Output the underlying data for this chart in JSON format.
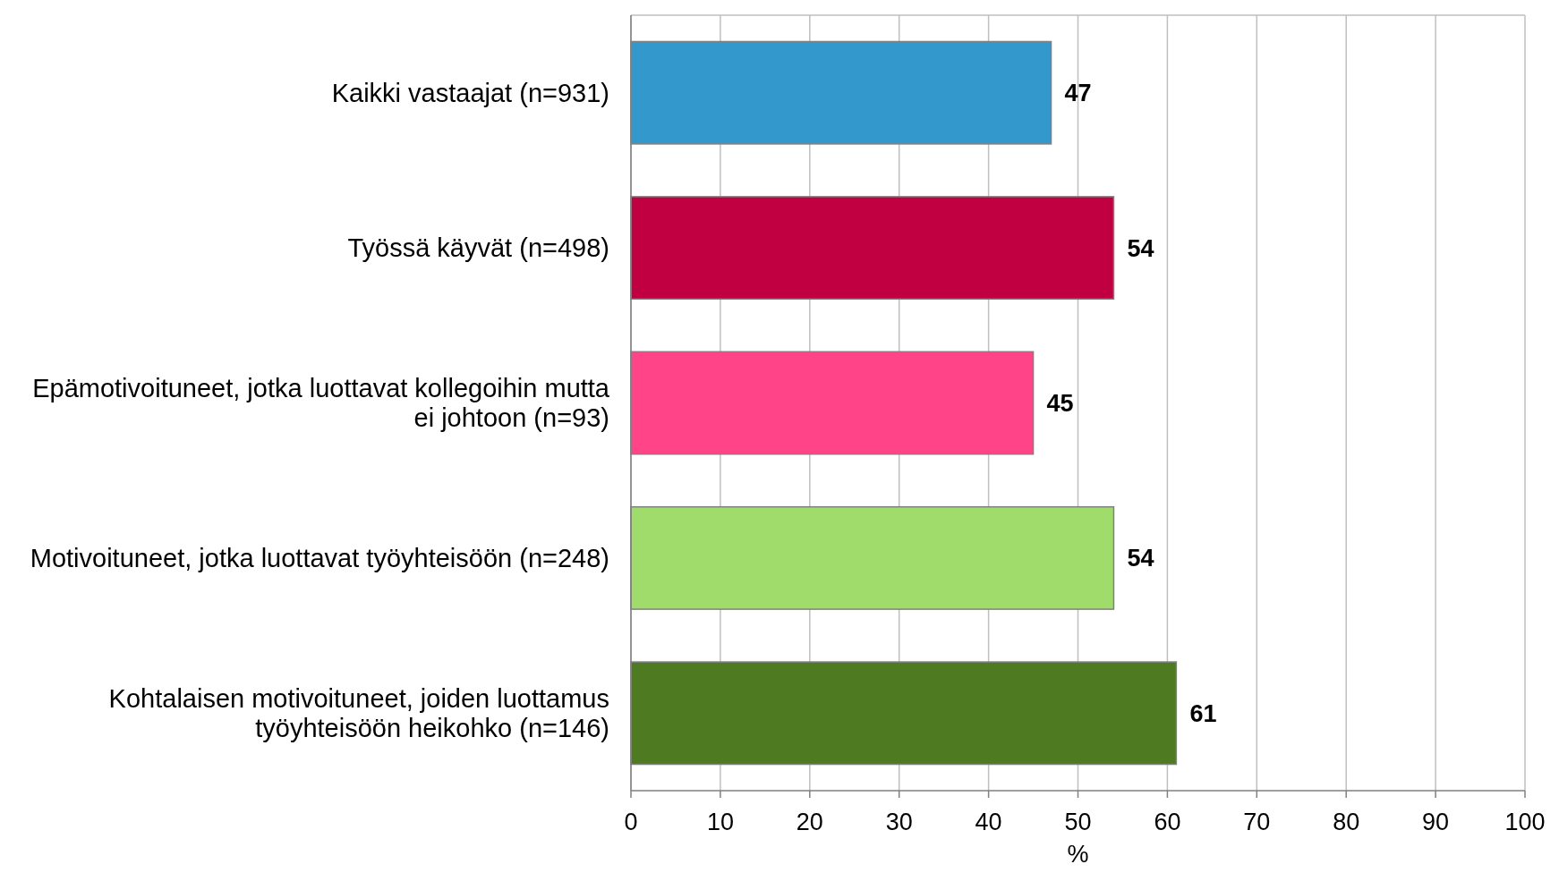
{
  "chart_data": {
    "type": "bar",
    "orientation": "horizontal",
    "categories": [
      "Kaikki vastaajat (n=931)",
      "Työssä käyvät (n=498)",
      "Epämotivoituneet, jotka luottavat kollegoihin mutta ei johtoon (n=93)",
      "Motivoituneet, jotka luottavat työyhteisöön (n=248)",
      "Kohtalaisen motivoituneet, joiden luottamus työyhteisöön heikohko (n=146)"
    ],
    "values": [
      47,
      54,
      45,
      54,
      61
    ],
    "colors": [
      "#3399cc",
      "#c00040",
      "#ff4488",
      "#a0dc6c",
      "#4e7a22"
    ],
    "xlim": [
      0,
      100
    ],
    "xticks": [
      0,
      10,
      20,
      30,
      40,
      50,
      60,
      70,
      80,
      90,
      100
    ],
    "xlabel": "%",
    "grid": "x",
    "data_labels": true
  }
}
